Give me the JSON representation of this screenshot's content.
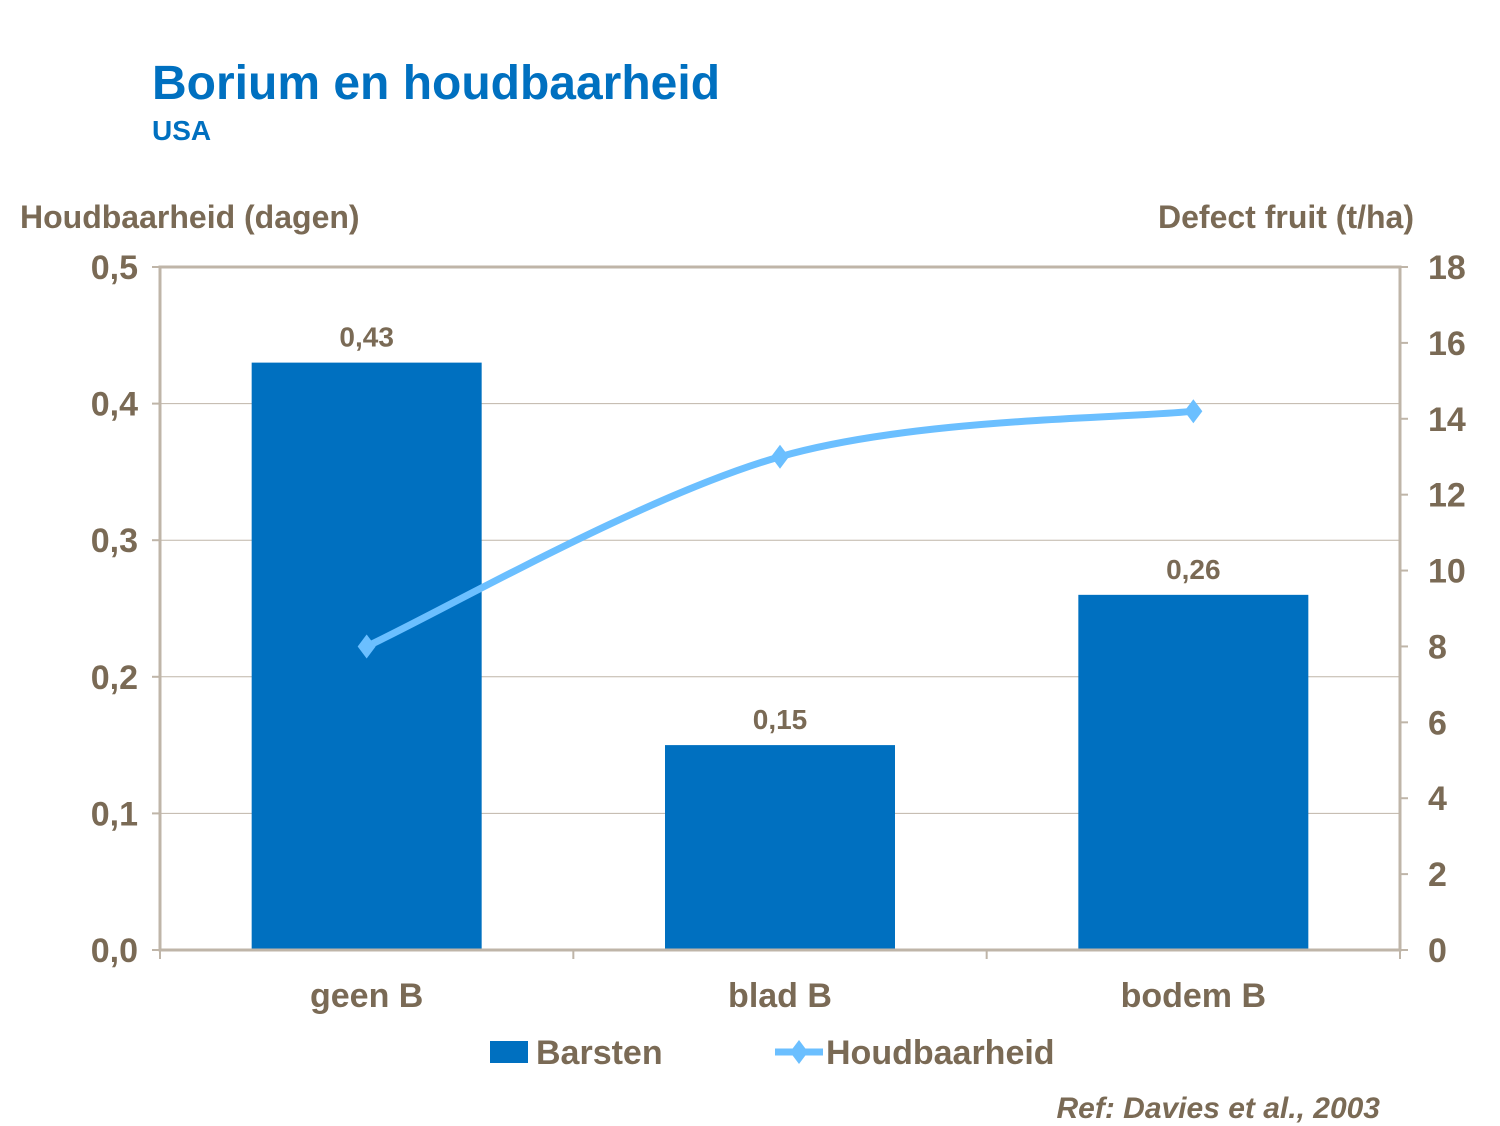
{
  "title": "Borium en houdbaarheid",
  "subtitle": "USA",
  "reference": "Ref: Davies et al., 2003",
  "colors": {
    "bar": "#0070C0",
    "line": "#6BBFFF",
    "text": "#7A6A55",
    "title": "#0070C0",
    "grid": "#BFB5A8"
  },
  "chart_data": {
    "type": "bar+line",
    "categories": [
      "geen B",
      "blad B",
      "bodem B"
    ],
    "ylabel_left": "Houdbaarheid (dagen)",
    "ylabel_right": "Defect fruit (t/ha)",
    "ylim_left": [
      0,
      0.5
    ],
    "yticks_left": [
      "0,0",
      "0,1",
      "0,2",
      "0,3",
      "0,4",
      "0,5"
    ],
    "ylim_right": [
      0,
      18
    ],
    "yticks_right": [
      "0",
      "2",
      "4",
      "6",
      "8",
      "10",
      "12",
      "14",
      "16",
      "18"
    ],
    "grid": true,
    "legend_placement": "bottom",
    "series": [
      {
        "name": "Barsten",
        "type": "bar",
        "axis": "left",
        "values": [
          0.43,
          0.15,
          0.26
        ],
        "labels": [
          "0,43",
          "0,15",
          "0,26"
        ]
      },
      {
        "name": "Houdbaarheid",
        "type": "line",
        "axis": "right",
        "marker": "diamond",
        "smooth": true,
        "values": [
          8.0,
          13.0,
          14.2
        ]
      }
    ]
  }
}
